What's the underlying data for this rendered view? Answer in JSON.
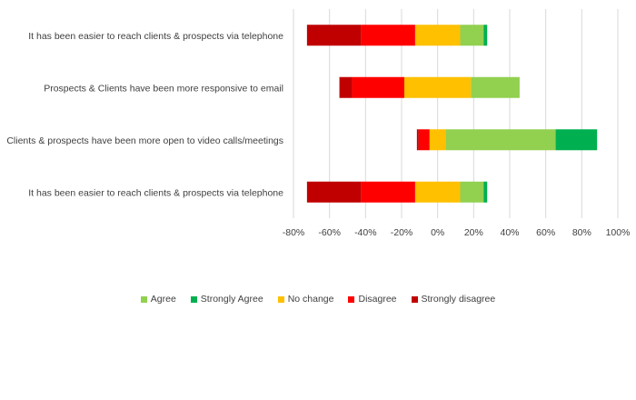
{
  "chart_data": {
    "type": "bar",
    "orientation": "horizontal",
    "stacked": "diverging",
    "title": "",
    "xlabel": "",
    "ylabel": "",
    "categories": [
      "It has been easier to reach clients & prospects via telephone",
      "Prospects & Clients have been more responsive to email",
      "Clients & prospects have been more open to video calls/meetings",
      "It has been easier to reach clients & prospects via telephone"
    ],
    "series": [
      {
        "name": "Agree",
        "color": "#92d050",
        "values": [
          13,
          27,
          61,
          13
        ]
      },
      {
        "name": "Strongly Agree",
        "color": "#00b050",
        "values": [
          2,
          0,
          23,
          2
        ]
      },
      {
        "name": "No change",
        "color": "#ffc000",
        "values": [
          25,
          37,
          9,
          25
        ]
      },
      {
        "name": "Disagree",
        "color": "#ff0000",
        "values": [
          30,
          29,
          6,
          30
        ]
      },
      {
        "name": "Strongly disagree",
        "color": "#c00000",
        "values": [
          30,
          7,
          1,
          30
        ]
      }
    ],
    "no_change_split": "centered",
    "xlim": [
      -80,
      100
    ],
    "xticks": [
      -80,
      -60,
      -40,
      -20,
      0,
      20,
      40,
      60,
      80,
      100
    ],
    "xtick_labels": [
      "-80%",
      "-60%",
      "-40%",
      "-20%",
      "0%",
      "20%",
      "40%",
      "60%",
      "80%",
      "100%"
    ],
    "grid": "vertical",
    "legend_position": "bottom",
    "legend_order": [
      "Agree",
      "Strongly Agree",
      "No change",
      "Disagree",
      "Strongly disagree"
    ]
  }
}
